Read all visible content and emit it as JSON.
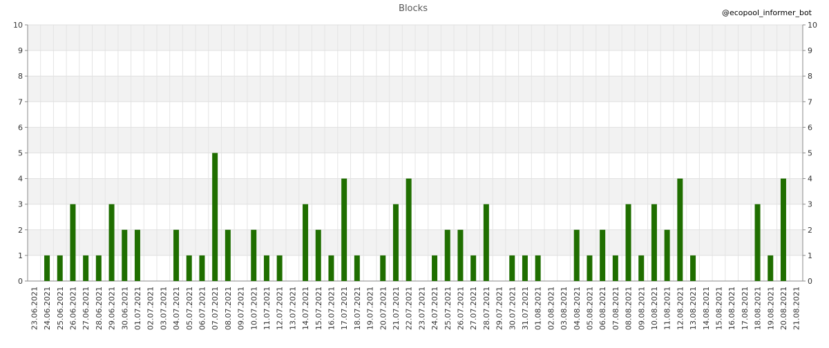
{
  "chart_data": {
    "type": "bar",
    "title": "Blocks",
    "watermark": "@ecopool_informer_bot",
    "categories": [
      "23.06.2021",
      "24.06.2021",
      "25.06.2021",
      "26.06.2021",
      "27.06.2021",
      "28.06.2021",
      "29.06.2021",
      "30.06.2021",
      "01.07.2021",
      "02.07.2021",
      "03.07.2021",
      "04.07.2021",
      "05.07.2021",
      "06.07.2021",
      "07.07.2021",
      "08.07.2021",
      "09.07.2021",
      "10.07.2021",
      "11.07.2021",
      "12.07.2021",
      "13.07.2021",
      "14.07.2021",
      "15.07.2021",
      "16.07.2021",
      "17.07.2021",
      "18.07.2021",
      "19.07.2021",
      "20.07.2021",
      "21.07.2021",
      "22.07.2021",
      "23.07.2021",
      "24.07.2021",
      "25.07.2021",
      "26.07.2021",
      "27.07.2021",
      "28.07.2021",
      "29.07.2021",
      "30.07.2021",
      "31.07.2021",
      "01.08.2021",
      "02.08.2021",
      "03.08.2021",
      "04.08.2021",
      "05.08.2021",
      "06.08.2021",
      "07.08.2021",
      "08.08.2021",
      "09.08.2021",
      "10.08.2021",
      "11.08.2021",
      "12.08.2021",
      "13.08.2021",
      "14.08.2021",
      "15.08.2021",
      "16.08.2021",
      "17.08.2021",
      "18.08.2021",
      "19.08.2021",
      "20.08.2021",
      "21.08.2021"
    ],
    "values": [
      0,
      1,
      1,
      3,
      1,
      1,
      3,
      2,
      2,
      0,
      0,
      2,
      1,
      1,
      5,
      2,
      0,
      2,
      1,
      1,
      0,
      3,
      2,
      1,
      4,
      1,
      0,
      1,
      3,
      4,
      0,
      1,
      2,
      2,
      1,
      3,
      0,
      1,
      1,
      1,
      0,
      0,
      2,
      1,
      2,
      1,
      3,
      1,
      3,
      2,
      4,
      1,
      0,
      0,
      0,
      0,
      3,
      1,
      4,
      0
    ],
    "color": "#1f6e00",
    "ylim": [
      0,
      10
    ],
    "yticks": [
      0,
      1,
      2,
      3,
      4,
      5,
      6,
      7,
      8,
      9,
      10
    ],
    "grid": true
  }
}
